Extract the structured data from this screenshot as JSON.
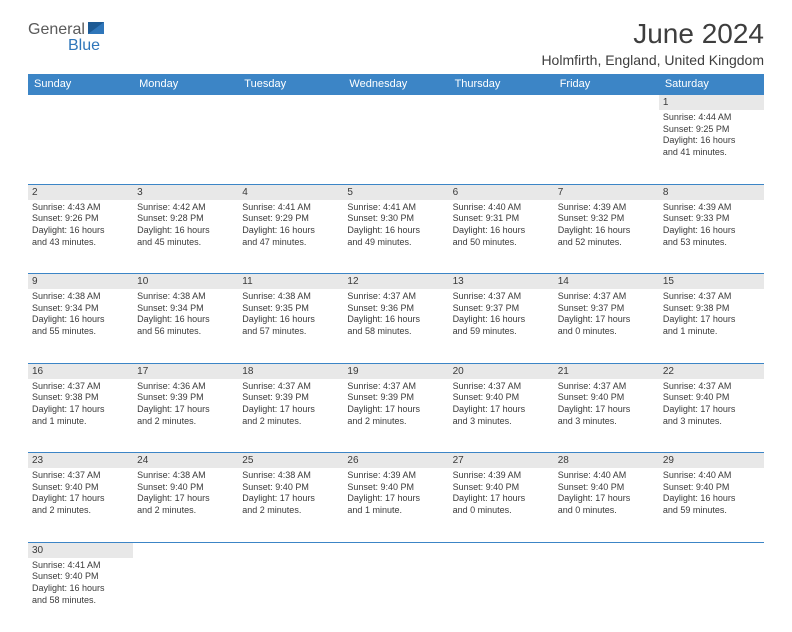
{
  "logo": {
    "text1": "General",
    "text2": "Blue",
    "color_gray": "#5a5a5a",
    "color_blue": "#2f76ba"
  },
  "title": "June 2024",
  "location": "Holmfirth, England, United Kingdom",
  "colors": {
    "header_bg": "#3c85c6",
    "header_fg": "#ffffff",
    "daynum_bg": "#e8e8e8",
    "border": "#3c85c6",
    "text": "#3a3a3a"
  },
  "day_headers": [
    "Sunday",
    "Monday",
    "Tuesday",
    "Wednesday",
    "Thursday",
    "Friday",
    "Saturday"
  ],
  "weeks": [
    {
      "nums": [
        "",
        "",
        "",
        "",
        "",
        "",
        "1"
      ],
      "cells": [
        null,
        null,
        null,
        null,
        null,
        null,
        {
          "sunrise": "Sunrise: 4:44 AM",
          "sunset": "Sunset: 9:25 PM",
          "daylight1": "Daylight: 16 hours",
          "daylight2": "and 41 minutes."
        }
      ]
    },
    {
      "nums": [
        "2",
        "3",
        "4",
        "5",
        "6",
        "7",
        "8"
      ],
      "cells": [
        {
          "sunrise": "Sunrise: 4:43 AM",
          "sunset": "Sunset: 9:26 PM",
          "daylight1": "Daylight: 16 hours",
          "daylight2": "and 43 minutes."
        },
        {
          "sunrise": "Sunrise: 4:42 AM",
          "sunset": "Sunset: 9:28 PM",
          "daylight1": "Daylight: 16 hours",
          "daylight2": "and 45 minutes."
        },
        {
          "sunrise": "Sunrise: 4:41 AM",
          "sunset": "Sunset: 9:29 PM",
          "daylight1": "Daylight: 16 hours",
          "daylight2": "and 47 minutes."
        },
        {
          "sunrise": "Sunrise: 4:41 AM",
          "sunset": "Sunset: 9:30 PM",
          "daylight1": "Daylight: 16 hours",
          "daylight2": "and 49 minutes."
        },
        {
          "sunrise": "Sunrise: 4:40 AM",
          "sunset": "Sunset: 9:31 PM",
          "daylight1": "Daylight: 16 hours",
          "daylight2": "and 50 minutes."
        },
        {
          "sunrise": "Sunrise: 4:39 AM",
          "sunset": "Sunset: 9:32 PM",
          "daylight1": "Daylight: 16 hours",
          "daylight2": "and 52 minutes."
        },
        {
          "sunrise": "Sunrise: 4:39 AM",
          "sunset": "Sunset: 9:33 PM",
          "daylight1": "Daylight: 16 hours",
          "daylight2": "and 53 minutes."
        }
      ]
    },
    {
      "nums": [
        "9",
        "10",
        "11",
        "12",
        "13",
        "14",
        "15"
      ],
      "cells": [
        {
          "sunrise": "Sunrise: 4:38 AM",
          "sunset": "Sunset: 9:34 PM",
          "daylight1": "Daylight: 16 hours",
          "daylight2": "and 55 minutes."
        },
        {
          "sunrise": "Sunrise: 4:38 AM",
          "sunset": "Sunset: 9:34 PM",
          "daylight1": "Daylight: 16 hours",
          "daylight2": "and 56 minutes."
        },
        {
          "sunrise": "Sunrise: 4:38 AM",
          "sunset": "Sunset: 9:35 PM",
          "daylight1": "Daylight: 16 hours",
          "daylight2": "and 57 minutes."
        },
        {
          "sunrise": "Sunrise: 4:37 AM",
          "sunset": "Sunset: 9:36 PM",
          "daylight1": "Daylight: 16 hours",
          "daylight2": "and 58 minutes."
        },
        {
          "sunrise": "Sunrise: 4:37 AM",
          "sunset": "Sunset: 9:37 PM",
          "daylight1": "Daylight: 16 hours",
          "daylight2": "and 59 minutes."
        },
        {
          "sunrise": "Sunrise: 4:37 AM",
          "sunset": "Sunset: 9:37 PM",
          "daylight1": "Daylight: 17 hours",
          "daylight2": "and 0 minutes."
        },
        {
          "sunrise": "Sunrise: 4:37 AM",
          "sunset": "Sunset: 9:38 PM",
          "daylight1": "Daylight: 17 hours",
          "daylight2": "and 1 minute."
        }
      ]
    },
    {
      "nums": [
        "16",
        "17",
        "18",
        "19",
        "20",
        "21",
        "22"
      ],
      "cells": [
        {
          "sunrise": "Sunrise: 4:37 AM",
          "sunset": "Sunset: 9:38 PM",
          "daylight1": "Daylight: 17 hours",
          "daylight2": "and 1 minute."
        },
        {
          "sunrise": "Sunrise: 4:36 AM",
          "sunset": "Sunset: 9:39 PM",
          "daylight1": "Daylight: 17 hours",
          "daylight2": "and 2 minutes."
        },
        {
          "sunrise": "Sunrise: 4:37 AM",
          "sunset": "Sunset: 9:39 PM",
          "daylight1": "Daylight: 17 hours",
          "daylight2": "and 2 minutes."
        },
        {
          "sunrise": "Sunrise: 4:37 AM",
          "sunset": "Sunset: 9:39 PM",
          "daylight1": "Daylight: 17 hours",
          "daylight2": "and 2 minutes."
        },
        {
          "sunrise": "Sunrise: 4:37 AM",
          "sunset": "Sunset: 9:40 PM",
          "daylight1": "Daylight: 17 hours",
          "daylight2": "and 3 minutes."
        },
        {
          "sunrise": "Sunrise: 4:37 AM",
          "sunset": "Sunset: 9:40 PM",
          "daylight1": "Daylight: 17 hours",
          "daylight2": "and 3 minutes."
        },
        {
          "sunrise": "Sunrise: 4:37 AM",
          "sunset": "Sunset: 9:40 PM",
          "daylight1": "Daylight: 17 hours",
          "daylight2": "and 3 minutes."
        }
      ]
    },
    {
      "nums": [
        "23",
        "24",
        "25",
        "26",
        "27",
        "28",
        "29"
      ],
      "cells": [
        {
          "sunrise": "Sunrise: 4:37 AM",
          "sunset": "Sunset: 9:40 PM",
          "daylight1": "Daylight: 17 hours",
          "daylight2": "and 2 minutes."
        },
        {
          "sunrise": "Sunrise: 4:38 AM",
          "sunset": "Sunset: 9:40 PM",
          "daylight1": "Daylight: 17 hours",
          "daylight2": "and 2 minutes."
        },
        {
          "sunrise": "Sunrise: 4:38 AM",
          "sunset": "Sunset: 9:40 PM",
          "daylight1": "Daylight: 17 hours",
          "daylight2": "and 2 minutes."
        },
        {
          "sunrise": "Sunrise: 4:39 AM",
          "sunset": "Sunset: 9:40 PM",
          "daylight1": "Daylight: 17 hours",
          "daylight2": "and 1 minute."
        },
        {
          "sunrise": "Sunrise: 4:39 AM",
          "sunset": "Sunset: 9:40 PM",
          "daylight1": "Daylight: 17 hours",
          "daylight2": "and 0 minutes."
        },
        {
          "sunrise": "Sunrise: 4:40 AM",
          "sunset": "Sunset: 9:40 PM",
          "daylight1": "Daylight: 17 hours",
          "daylight2": "and 0 minutes."
        },
        {
          "sunrise": "Sunrise: 4:40 AM",
          "sunset": "Sunset: 9:40 PM",
          "daylight1": "Daylight: 16 hours",
          "daylight2": "and 59 minutes."
        }
      ]
    },
    {
      "nums": [
        "30",
        "",
        "",
        "",
        "",
        "",
        ""
      ],
      "cells": [
        {
          "sunrise": "Sunrise: 4:41 AM",
          "sunset": "Sunset: 9:40 PM",
          "daylight1": "Daylight: 16 hours",
          "daylight2": "and 58 minutes."
        },
        null,
        null,
        null,
        null,
        null,
        null
      ]
    }
  ]
}
